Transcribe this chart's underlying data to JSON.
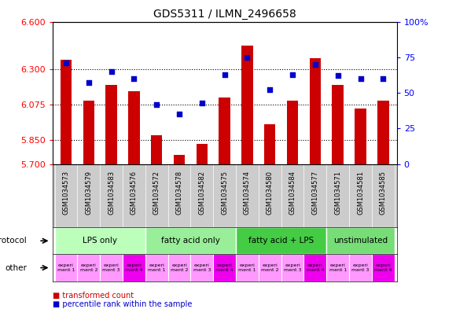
{
  "title": "GDS5311 / ILMN_2496658",
  "samples": [
    "GSM1034573",
    "GSM1034579",
    "GSM1034583",
    "GSM1034576",
    "GSM1034572",
    "GSM1034578",
    "GSM1034582",
    "GSM1034575",
    "GSM1034574",
    "GSM1034580",
    "GSM1034584",
    "GSM1034577",
    "GSM1034571",
    "GSM1034581",
    "GSM1034585"
  ],
  "transformed_count": [
    6.36,
    6.1,
    6.2,
    6.16,
    5.88,
    5.76,
    5.83,
    6.12,
    6.45,
    5.95,
    6.1,
    6.37,
    6.2,
    6.05,
    6.1
  ],
  "percentile_rank": [
    71,
    57,
    65,
    60,
    42,
    35,
    43,
    63,
    75,
    52,
    63,
    70,
    62,
    60,
    60
  ],
  "protocols": [
    {
      "label": "LPS only",
      "start": 0,
      "end": 4,
      "color": "#bbffbb"
    },
    {
      "label": "fatty acid only",
      "start": 4,
      "end": 8,
      "color": "#99ee99"
    },
    {
      "label": "fatty acid + LPS",
      "start": 8,
      "end": 12,
      "color": "#44cc44"
    },
    {
      "label": "unstimulated",
      "start": 12,
      "end": 15,
      "color": "#77dd77"
    }
  ],
  "exp_labels": [
    "experi\nment 1",
    "experi\nment 2",
    "experi\nment 3",
    "experi\nment 4",
    "experi\nment 1",
    "experi\nment 2",
    "experi\nment 3",
    "experi\nment 4",
    "experi\nment 1",
    "experi\nment 2",
    "experi\nment 3",
    "experi\nment 4",
    "experi\nment 1",
    "experi\nment 3",
    "experi\nment 4"
  ],
  "exp_colors": [
    "#ff99ff",
    "#ff99ff",
    "#ff99ff",
    "#ee00ee",
    "#ff99ff",
    "#ff99ff",
    "#ff99ff",
    "#ee00ee",
    "#ff99ff",
    "#ff99ff",
    "#ff99ff",
    "#ee00ee",
    "#ff99ff",
    "#ff99ff",
    "#ee00ee"
  ],
  "ylim_left": [
    5.7,
    6.6
  ],
  "ylim_right": [
    0,
    100
  ],
  "yticks_left": [
    5.7,
    5.85,
    6.075,
    6.3,
    6.6
  ],
  "yticks_right": [
    0,
    25,
    50,
    75,
    100
  ],
  "bar_color": "#cc0000",
  "dot_color": "#0000cc",
  "bg_color": "#ffffff",
  "sample_band_color": "#cccccc",
  "bar_width": 0.5,
  "baseline": 5.7
}
